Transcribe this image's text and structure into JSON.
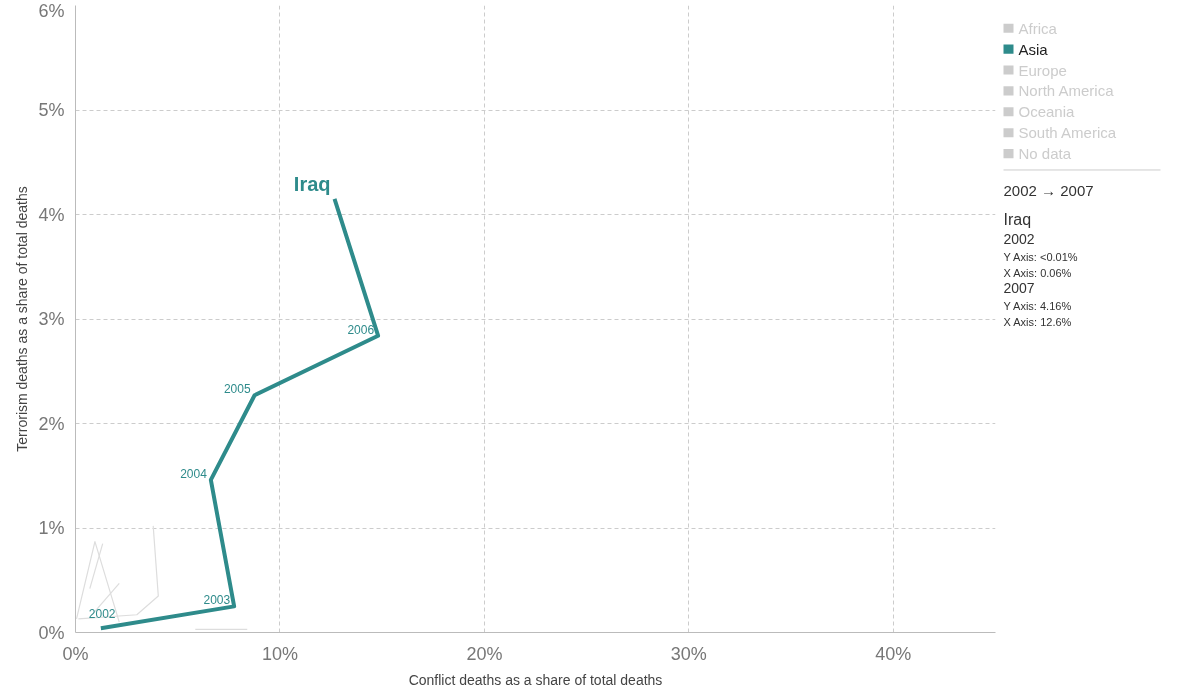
{
  "chart_data": {
    "type": "line",
    "xlabel": "Conflict deaths as a share of total deaths",
    "ylabel": "Terrorism deaths as a share of total deaths",
    "xlim": [
      0,
      45
    ],
    "xticks": [
      {
        "value": 0,
        "label": "0%"
      },
      {
        "value": 10,
        "label": "10%"
      },
      {
        "value": 20,
        "label": "20%"
      },
      {
        "value": 30,
        "label": "30%"
      },
      {
        "value": 40,
        "label": "40%"
      }
    ],
    "ylim": [
      0,
      6
    ],
    "yticks": [
      {
        "value": 0,
        "label": "0%"
      },
      {
        "value": 1,
        "label": "1%"
      },
      {
        "value": 2,
        "label": "2%"
      },
      {
        "value": 3,
        "label": "3%"
      },
      {
        "value": 4,
        "label": "4%"
      },
      {
        "value": 5,
        "label": "5%"
      },
      {
        "value": 6,
        "label": "6%"
      }
    ],
    "grid": true,
    "line_style": "solid",
    "legend": "right",
    "series": [
      {
        "name": "Africa",
        "color": "#cccccc"
      },
      {
        "name": "Asia",
        "color": "#2e8b8b",
        "x": [
          1.24,
          7.76,
          6.62,
          8.76,
          14.8,
          12.67
        ],
        "values": [
          0.04,
          0.25,
          1.46,
          2.27,
          2.84,
          4.15
        ]
      },
      {
        "name": "Europe",
        "color": "#cccccc"
      },
      {
        "name": "North America",
        "color": "#cccccc"
      },
      {
        "name": "Oceania",
        "color": "#cccccc"
      },
      {
        "name": "South America",
        "color": "#cccccc"
      },
      {
        "name": "No data",
        "color": "#cccccc"
      },
      {
        "color": "#dddddd",
        "x": [
          0.14,
          3.0,
          4.05,
          3.8
        ],
        "values": [
          0.13,
          0.17,
          0.35,
          1.02
        ]
      },
      {
        "color": "#dddddd",
        "x": [
          0.05,
          0.95,
          2.14
        ],
        "values": [
          0.13,
          0.87,
          0.1
        ]
      },
      {
        "color": "#dddddd",
        "x": [
          0.7,
          1.33
        ],
        "values": [
          0.42,
          0.85
        ]
      },
      {
        "color": "#dddddd",
        "x": [
          0.76,
          2.14
        ],
        "values": [
          0.16,
          0.47
        ]
      },
      {
        "color": "#dddddd",
        "x": [
          5.86,
          8.4
        ],
        "values": [
          0.03,
          0.03
        ]
      }
    ],
    "annotations": [
      {
        "text": "Iraq",
        "x": 12.67,
        "y": 4.15
      },
      {
        "text": "2002",
        "x": 1.24,
        "y": 0.04
      },
      {
        "text": "2003",
        "x": 7.76,
        "y": 0.25
      },
      {
        "text": "2004",
        "x": 6.62,
        "y": 1.46
      },
      {
        "text": "2005",
        "x": 8.76,
        "y": 2.27
      },
      {
        "text": "2006",
        "x": 14.8,
        "y": 2.84
      },
      "2002 → 2007",
      "Iraq",
      "2002",
      "Y Axis: <0.01%",
      "X Axis: 0.06%",
      "2007",
      "Y Axis: 4.16%",
      "X Axis: 12.6%"
    ]
  }
}
